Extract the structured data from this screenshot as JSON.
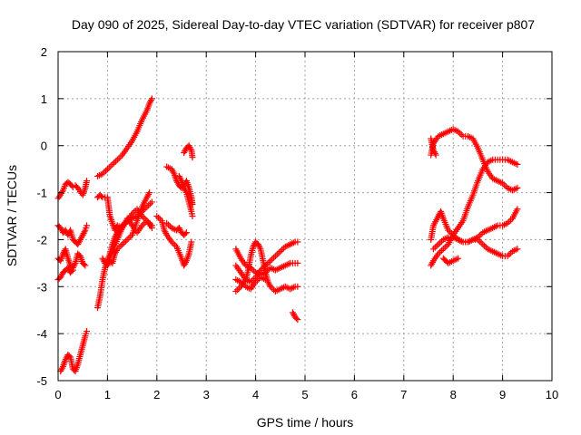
{
  "chart_data": {
    "type": "scatter",
    "title": "Day 090 of 2025, Sidereal Day-to-day VTEC variation (SDTVAR) for receiver p807",
    "xlabel": "GPS time / hours",
    "ylabel": "SDTVAR / TECUs",
    "xlim": [
      0,
      10
    ],
    "ylim": [
      -5,
      2
    ],
    "xticks": [
      "0",
      "1",
      "2",
      "3",
      "4",
      "5",
      "6",
      "7",
      "8",
      "9",
      "10"
    ],
    "yticks": [
      "-5",
      "-4",
      "-3",
      "-2",
      "-1",
      "0",
      "1",
      "2"
    ],
    "grid": true,
    "marker": "plus",
    "color": "#ff0000",
    "tracks": [
      [
        [
          0.0,
          -1.12
        ],
        [
          0.05,
          -1.05
        ],
        [
          0.1,
          -0.95
        ],
        [
          0.15,
          -0.82
        ],
        [
          0.2,
          -0.78
        ],
        [
          0.25,
          -0.82
        ],
        [
          0.3,
          -0.88
        ],
        [
          0.35,
          -0.85
        ],
        [
          0.4,
          -0.9
        ],
        [
          0.45,
          -0.98
        ],
        [
          0.5,
          -1.05
        ],
        [
          0.55,
          -0.9
        ],
        [
          0.58,
          -0.75
        ]
      ],
      [
        [
          0.0,
          -1.7
        ],
        [
          0.05,
          -1.75
        ],
        [
          0.1,
          -1.85
        ],
        [
          0.15,
          -1.8
        ],
        [
          0.2,
          -1.9
        ],
        [
          0.25,
          -1.8
        ],
        [
          0.3,
          -2.0
        ],
        [
          0.35,
          -2.05
        ],
        [
          0.4,
          -2.1
        ],
        [
          0.45,
          -2.0
        ],
        [
          0.5,
          -1.9
        ],
        [
          0.55,
          -1.8
        ],
        [
          0.58,
          -1.7
        ]
      ],
      [
        [
          0.0,
          -2.4
        ],
        [
          0.05,
          -2.45
        ],
        [
          0.1,
          -2.3
        ],
        [
          0.15,
          -2.2
        ],
        [
          0.2,
          -2.4
        ],
        [
          0.25,
          -2.55
        ],
        [
          0.3,
          -2.6
        ],
        [
          0.35,
          -2.5
        ],
        [
          0.4,
          -2.3
        ],
        [
          0.45,
          -2.35
        ],
        [
          0.5,
          -2.5
        ],
        [
          0.55,
          -2.55
        ]
      ],
      [
        [
          0.0,
          -2.85
        ],
        [
          0.05,
          -2.8
        ],
        [
          0.1,
          -2.7
        ],
        [
          0.15,
          -2.65
        ],
        [
          0.2,
          -2.6
        ],
        [
          0.25,
          -2.7
        ],
        [
          0.3,
          -2.65
        ]
      ],
      [
        [
          0.05,
          -4.8
        ],
        [
          0.1,
          -4.7
        ],
        [
          0.15,
          -4.55
        ],
        [
          0.2,
          -4.45
        ],
        [
          0.25,
          -4.5
        ],
        [
          0.3,
          -4.75
        ],
        [
          0.35,
          -4.8
        ],
        [
          0.4,
          -4.65
        ],
        [
          0.45,
          -4.45
        ],
        [
          0.5,
          -4.25
        ],
        [
          0.55,
          -4.05
        ],
        [
          0.58,
          -3.95
        ]
      ],
      [
        [
          0.8,
          -0.65
        ],
        [
          0.9,
          -0.6
        ],
        [
          1.0,
          -0.5
        ],
        [
          1.1,
          -0.4
        ],
        [
          1.2,
          -0.3
        ],
        [
          1.3,
          -0.2
        ],
        [
          1.4,
          -0.05
        ],
        [
          1.5,
          0.1
        ],
        [
          1.6,
          0.3
        ],
        [
          1.7,
          0.55
        ],
        [
          1.8,
          0.75
        ],
        [
          1.85,
          0.9
        ],
        [
          1.9,
          1.0
        ]
      ],
      [
        [
          0.8,
          -1.1
        ],
        [
          0.85,
          -1.05
        ],
        [
          0.9,
          -1.1
        ],
        [
          1.0,
          -1.1
        ],
        [
          1.05,
          -1.5
        ],
        [
          1.1,
          -1.65
        ],
        [
          1.15,
          -1.8
        ],
        [
          1.2,
          -1.7
        ],
        [
          1.3,
          -1.75
        ],
        [
          1.4,
          -1.6
        ],
        [
          1.5,
          -1.45
        ],
        [
          1.6,
          -1.35
        ],
        [
          1.7,
          -1.5
        ],
        [
          1.8,
          -1.6
        ],
        [
          1.9,
          -1.75
        ]
      ],
      [
        [
          0.8,
          -3.45
        ],
        [
          0.85,
          -3.2
        ],
        [
          0.9,
          -2.85
        ],
        [
          0.95,
          -2.6
        ],
        [
          1.0,
          -2.45
        ],
        [
          1.05,
          -2.3
        ],
        [
          1.1,
          -2.1
        ],
        [
          1.15,
          -1.95
        ],
        [
          1.2,
          -1.85
        ],
        [
          1.3,
          -1.7
        ],
        [
          1.4,
          -1.6
        ],
        [
          1.5,
          -1.55
        ],
        [
          1.6,
          -1.5
        ],
        [
          1.7,
          -1.4
        ],
        [
          1.8,
          -1.3
        ],
        [
          1.9,
          -1.2
        ]
      ],
      [
        [
          0.9,
          -2.4
        ],
        [
          0.95,
          -2.5
        ],
        [
          1.0,
          -2.55
        ],
        [
          1.05,
          -2.45
        ],
        [
          1.1,
          -2.5
        ],
        [
          1.15,
          -2.3
        ],
        [
          1.2,
          -2.2
        ],
        [
          1.3,
          -2.1
        ],
        [
          1.4,
          -2.0
        ],
        [
          1.5,
          -1.9
        ],
        [
          1.6,
          -1.6
        ],
        [
          1.7,
          -1.3
        ],
        [
          1.8,
          -1.1
        ],
        [
          1.85,
          -1.0
        ]
      ],
      [
        [
          1.0,
          -2.5
        ],
        [
          1.1,
          -2.25
        ],
        [
          1.2,
          -2.0
        ],
        [
          1.3,
          -1.75
        ],
        [
          1.4,
          -1.55
        ],
        [
          1.5,
          -1.7
        ],
        [
          1.6,
          -1.85
        ],
        [
          1.7,
          -1.7
        ],
        [
          1.8,
          -1.6
        ],
        [
          1.9,
          -1.7
        ]
      ],
      [
        [
          2.2,
          -0.45
        ],
        [
          2.3,
          -0.5
        ],
        [
          2.35,
          -0.6
        ],
        [
          2.4,
          -0.75
        ],
        [
          2.45,
          -0.85
        ],
        [
          2.5,
          -0.9
        ],
        [
          2.55,
          -0.85
        ],
        [
          2.6,
          -0.75
        ],
        [
          2.65,
          -0.9
        ],
        [
          2.7,
          -1.1
        ],
        [
          2.72,
          -1.25
        ]
      ],
      [
        [
          2.2,
          -1.65
        ],
        [
          2.3,
          -1.75
        ],
        [
          2.4,
          -1.8
        ],
        [
          2.45,
          -1.75
        ],
        [
          2.5,
          -1.85
        ],
        [
          2.55,
          -1.9
        ],
        [
          2.6,
          -1.85
        ]
      ],
      [
        [
          2.0,
          -1.5
        ],
        [
          2.1,
          -1.6
        ],
        [
          2.15,
          -1.8
        ],
        [
          2.2,
          -1.9
        ],
        [
          2.3,
          -2.05
        ],
        [
          2.4,
          -2.15
        ],
        [
          2.5,
          -2.4
        ],
        [
          2.55,
          -2.55
        ],
        [
          2.6,
          -2.45
        ],
        [
          2.65,
          -2.3
        ],
        [
          2.7,
          -2.05
        ]
      ],
      [
        [
          2.55,
          -0.15
        ],
        [
          2.6,
          -0.05
        ],
        [
          2.65,
          0.0
        ],
        [
          2.7,
          -0.1
        ],
        [
          2.72,
          -0.25
        ]
      ],
      [
        [
          2.45,
          -0.65
        ],
        [
          2.5,
          -0.75
        ],
        [
          2.55,
          -0.9
        ],
        [
          2.6,
          -1.0
        ],
        [
          2.65,
          -1.2
        ],
        [
          2.7,
          -1.4
        ],
        [
          2.72,
          -1.5
        ]
      ],
      [
        [
          3.6,
          -2.2
        ],
        [
          3.7,
          -2.4
        ],
        [
          3.8,
          -2.55
        ],
        [
          3.9,
          -2.6
        ],
        [
          4.0,
          -2.7
        ],
        [
          4.1,
          -2.75
        ],
        [
          4.2,
          -2.7
        ],
        [
          4.3,
          -2.6
        ],
        [
          4.4,
          -2.65
        ],
        [
          4.5,
          -2.6
        ],
        [
          4.6,
          -2.55
        ],
        [
          4.7,
          -2.5
        ],
        [
          4.8,
          -2.5
        ],
        [
          4.85,
          -2.5
        ]
      ],
      [
        [
          3.6,
          -2.55
        ],
        [
          3.7,
          -2.7
        ],
        [
          3.8,
          -2.85
        ],
        [
          3.9,
          -2.9
        ],
        [
          4.0,
          -2.8
        ],
        [
          4.1,
          -2.65
        ],
        [
          4.2,
          -2.55
        ],
        [
          4.3,
          -2.45
        ],
        [
          4.4,
          -2.35
        ],
        [
          4.5,
          -2.25
        ],
        [
          4.6,
          -2.15
        ],
        [
          4.7,
          -2.1
        ],
        [
          4.8,
          -2.05
        ],
        [
          4.85,
          -2.05
        ]
      ],
      [
        [
          3.6,
          -3.1
        ],
        [
          3.7,
          -3.0
        ],
        [
          3.8,
          -2.85
        ],
        [
          3.85,
          -2.65
        ],
        [
          3.9,
          -2.35
        ],
        [
          3.95,
          -2.15
        ],
        [
          4.0,
          -2.05
        ],
        [
          4.05,
          -2.1
        ],
        [
          4.1,
          -2.2
        ],
        [
          4.15,
          -2.45
        ],
        [
          4.2,
          -2.7
        ],
        [
          4.25,
          -2.9
        ],
        [
          4.3,
          -3.0
        ],
        [
          4.4,
          -3.1
        ],
        [
          4.5,
          -3.05
        ],
        [
          4.6,
          -3.0
        ],
        [
          4.7,
          -3.05
        ],
        [
          4.8,
          -3.0
        ],
        [
          4.85,
          -3.0
        ]
      ],
      [
        [
          3.6,
          -2.85
        ],
        [
          3.7,
          -2.9
        ],
        [
          3.8,
          -3.0
        ],
        [
          3.9,
          -3.05
        ],
        [
          4.0,
          -2.9
        ],
        [
          4.1,
          -2.8
        ],
        [
          4.2,
          -2.85
        ]
      ],
      [
        [
          4.75,
          -3.55
        ],
        [
          4.8,
          -3.65
        ],
        [
          4.85,
          -3.7
        ]
      ],
      [
        [
          7.55,
          -0.2
        ],
        [
          7.6,
          0.05
        ],
        [
          7.7,
          0.2
        ],
        [
          7.8,
          0.25
        ],
        [
          7.9,
          0.3
        ],
        [
          8.0,
          0.35
        ],
        [
          8.1,
          0.3
        ],
        [
          8.2,
          0.2
        ],
        [
          8.3,
          0.2
        ],
        [
          8.4,
          0.15
        ],
        [
          8.5,
          -0.05
        ],
        [
          8.6,
          -0.3
        ],
        [
          8.7,
          -0.55
        ],
        [
          8.8,
          -0.7
        ],
        [
          8.9,
          -0.75
        ],
        [
          9.0,
          -0.8
        ],
        [
          9.1,
          -0.9
        ],
        [
          9.2,
          -0.95
        ],
        [
          9.3,
          -0.9
        ]
      ],
      [
        [
          7.55,
          0.15
        ],
        [
          7.6,
          -0.1
        ],
        [
          7.65,
          -0.2
        ]
      ],
      [
        [
          7.55,
          -2.0
        ],
        [
          7.6,
          -1.7
        ],
        [
          7.7,
          -1.5
        ],
        [
          7.75,
          -1.4
        ],
        [
          7.8,
          -1.55
        ],
        [
          7.9,
          -1.8
        ],
        [
          8.0,
          -1.9
        ],
        [
          8.1,
          -2.0
        ],
        [
          8.2,
          -2.05
        ],
        [
          8.3,
          -2.05
        ],
        [
          8.4,
          -2.0
        ],
        [
          8.5,
          -1.95
        ],
        [
          8.6,
          -1.85
        ],
        [
          8.7,
          -1.8
        ],
        [
          8.8,
          -1.75
        ],
        [
          8.9,
          -1.7
        ],
        [
          9.0,
          -1.7
        ],
        [
          9.1,
          -1.65
        ],
        [
          9.2,
          -1.55
        ],
        [
          9.3,
          -1.35
        ]
      ],
      [
        [
          7.6,
          -2.2
        ],
        [
          7.7,
          -2.1
        ],
        [
          7.8,
          -2.0
        ],
        [
          7.9,
          -1.95
        ],
        [
          8.0,
          -1.95
        ],
        [
          8.1,
          -2.0
        ],
        [
          8.2,
          -2.05
        ],
        [
          8.3,
          -2.05
        ],
        [
          8.4,
          -2.0
        ],
        [
          8.5,
          -2.0
        ],
        [
          8.6,
          -2.1
        ],
        [
          8.7,
          -2.2
        ],
        [
          8.8,
          -2.25
        ],
        [
          8.9,
          -2.3
        ],
        [
          9.0,
          -2.35
        ],
        [
          9.1,
          -2.35
        ],
        [
          9.2,
          -2.25
        ],
        [
          9.3,
          -2.2
        ]
      ],
      [
        [
          7.55,
          -2.55
        ],
        [
          7.6,
          -2.45
        ],
        [
          7.7,
          -2.3
        ],
        [
          7.8,
          -2.2
        ],
        [
          7.9,
          -2.1
        ],
        [
          8.0,
          -1.9
        ],
        [
          8.1,
          -1.75
        ],
        [
          8.2,
          -1.6
        ],
        [
          8.3,
          -1.3
        ],
        [
          8.4,
          -1.05
        ],
        [
          8.5,
          -0.75
        ],
        [
          8.6,
          -0.5
        ],
        [
          8.7,
          -0.35
        ],
        [
          8.8,
          -0.3
        ],
        [
          8.9,
          -0.3
        ],
        [
          9.0,
          -0.3
        ],
        [
          9.1,
          -0.3
        ],
        [
          9.2,
          -0.35
        ],
        [
          9.3,
          -0.4
        ]
      ],
      [
        [
          7.8,
          -2.4
        ],
        [
          7.85,
          -2.45
        ],
        [
          7.9,
          -2.5
        ],
        [
          8.0,
          -2.45
        ],
        [
          8.1,
          -2.4
        ]
      ]
    ]
  }
}
